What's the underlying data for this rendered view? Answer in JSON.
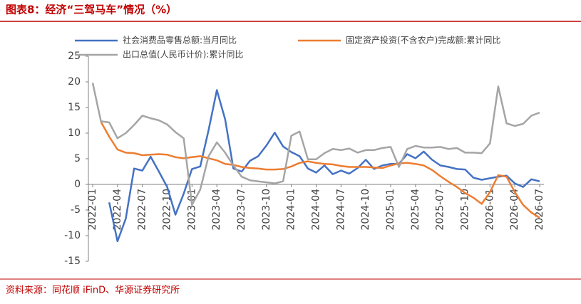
{
  "header": {
    "title": "图表8：经济“三驾马车”情况（%）"
  },
  "footer": {
    "source": "资料来源：同花顺 iFinD、华源证券研究所"
  },
  "chart_data": {
    "type": "line",
    "categories": [
      "2022-01",
      null,
      null,
      "2022-04",
      null,
      null,
      "2022-07",
      null,
      null,
      "2022-10",
      null,
      null,
      "2023-01",
      null,
      null,
      "2023-04",
      null,
      null,
      "2023-07",
      null,
      null,
      "2023-10",
      null,
      null,
      "2024-01",
      null,
      null,
      "2024-04",
      null,
      null,
      "2024-07",
      null,
      null,
      "2024-10",
      null,
      null,
      "2025-01",
      null,
      null,
      "2025-04",
      null,
      null,
      "2025-07",
      null,
      null,
      "2025-10",
      null,
      null,
      "2026-01",
      null,
      null,
      "2026-04",
      null,
      null,
      "2026-07"
    ],
    "series": [
      {
        "name": "社会消费品零售总额:当月同比",
        "color": "#4472c4",
        "values": [
          null,
          null,
          -3.5,
          -11.1,
          -6.7,
          3.1,
          2.7,
          5.4,
          2.5,
          -0.5,
          -5.9,
          -1.8,
          3.0,
          3.5,
          10.6,
          18.4,
          12.7,
          3.1,
          2.5,
          4.6,
          5.5,
          7.6,
          10.1,
          7.4,
          6.3,
          5.5,
          3.1,
          2.3,
          3.7,
          2.0,
          2.7,
          2.1,
          3.2,
          4.8,
          3.0,
          3.7,
          4.0,
          4.0,
          5.9,
          5.1,
          6.4,
          4.8,
          3.7,
          3.4,
          3.0,
          2.9,
          1.3,
          0.9,
          1.2,
          1.5,
          1.7,
          0.2,
          -0.5,
          1.0,
          0.6
        ]
      },
      {
        "name": "固定资产投资(不含农户)完成额:累计同比",
        "color": "#ed7d31",
        "values": [
          null,
          12.2,
          9.3,
          6.8,
          6.2,
          6.1,
          5.7,
          5.8,
          5.9,
          5.8,
          5.3,
          5.1,
          5.3,
          5.5,
          5.1,
          4.7,
          4.0,
          3.8,
          3.4,
          3.2,
          3.1,
          2.9,
          2.9,
          3.0,
          3.5,
          4.2,
          4.5,
          4.2,
          4.0,
          3.9,
          3.6,
          3.4,
          3.4,
          3.4,
          3.3,
          3.2,
          3.7,
          4.1,
          4.2,
          4.0,
          3.7,
          2.8,
          1.6,
          0.5,
          -0.5,
          -1.7,
          -2.6,
          -3.8,
          -1.5,
          1.8,
          1.5,
          -1.5,
          -4.0,
          -5.5,
          -6.5
        ]
      },
      {
        "name": "出口总值(人民币计价):累计同比",
        "color": "#a5a5a5",
        "values": [
          19.8,
          12.3,
          12.1,
          9.0,
          10.0,
          11.6,
          13.4,
          12.9,
          12.5,
          11.7,
          10.2,
          9.0,
          -4.0,
          -1.0,
          5.5,
          8.2,
          6.2,
          3.7,
          1.5,
          0.8,
          0.6,
          0.4,
          0.2,
          0.6,
          9.5,
          10.3,
          4.9,
          4.9,
          6.1,
          6.9,
          6.7,
          7.0,
          6.2,
          6.7,
          6.7,
          7.1,
          7.3,
          3.4,
          6.9,
          7.5,
          7.2,
          7.2,
          7.3,
          6.9,
          7.1,
          6.2,
          6.2,
          6.1,
          8.0,
          19.1,
          11.9,
          11.4,
          11.8,
          13.4,
          14.0
        ]
      }
    ],
    "ylim": [
      -15,
      25
    ],
    "yticks": [
      -15,
      -10,
      -5,
      0,
      5,
      10,
      15,
      20,
      25
    ],
    "grid": false
  }
}
